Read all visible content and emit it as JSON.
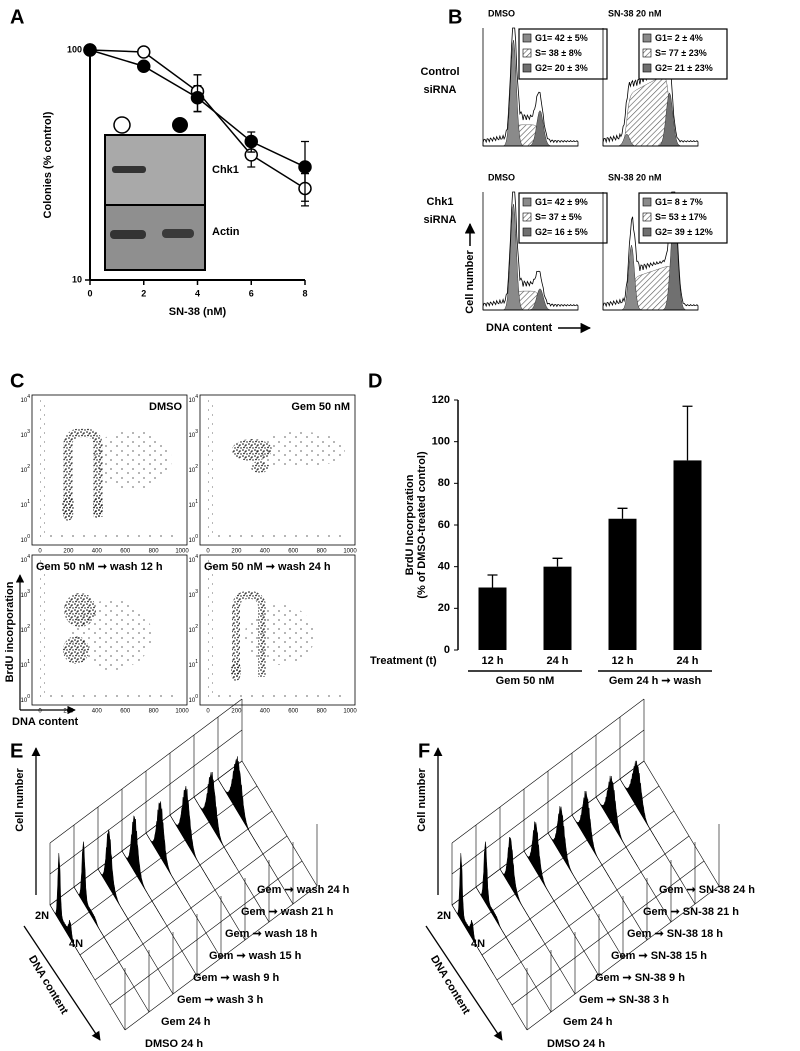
{
  "panel_labels": [
    "A",
    "B",
    "C",
    "D",
    "E",
    "F"
  ],
  "chart_data": [
    {
      "type": "line",
      "xlabel": "SN-38 (nM)",
      "ylabel": "Colonies (% control)",
      "x": [
        0,
        2,
        4,
        6,
        8
      ],
      "xlim": [
        0,
        8
      ],
      "xticks": [
        0,
        2,
        4,
        6,
        8
      ],
      "ylim": [
        10,
        100
      ],
      "yticks": [
        10,
        100
      ],
      "log_y": true,
      "series": [
        {
          "marker": "open",
          "color": "#000000",
          "values": [
            100,
            98,
            66,
            35,
            25
          ],
          "errors": [
            0,
            4,
            12,
            4,
            4
          ]
        },
        {
          "marker": "filled",
          "color": "#000000",
          "values": [
            100,
            85,
            62,
            40,
            31
          ],
          "errors": [
            0,
            3,
            8,
            4,
            9
          ]
        }
      ],
      "inset": {
        "labels": [
          "Chk1",
          "Actin"
        ]
      }
    },
    {
      "type": "bar",
      "categories": [
        "12 h",
        "24 h",
        "12 h",
        "24 h"
      ],
      "values": [
        30,
        40,
        63,
        91
      ],
      "errors": [
        6,
        4,
        5,
        26
      ],
      "color": "#000000",
      "ylim": [
        0,
        120
      ],
      "yticks": [
        0,
        20,
        40,
        60,
        80,
        100,
        120
      ],
      "ylabel": [
        "BrdU Incorporation",
        "(% of DMSO-treated control)"
      ],
      "xlabel": "Treatment (t)",
      "groups": [
        "Gem 50 nM",
        "Gem 24 h ➞ wash"
      ]
    }
  ],
  "flow_cytometry": {
    "columns": [
      "DMSO",
      "SN-38 20 nM"
    ],
    "rows": [
      [
        "Control",
        "siRNA"
      ],
      [
        "Chk1",
        "siRNA"
      ]
    ],
    "legends": [
      [
        "G1= 42 ± 5%",
        "S= 38 ± 8%",
        "G2= 20 ± 3%"
      ],
      [
        "G1= 2 ± 4%",
        "S= 77 ± 23%",
        "G2= 21 ± 23%"
      ],
      [
        "G1= 42 ± 9%",
        "S= 37 ± 5%",
        "G2= 16 ± 5%"
      ],
      [
        "G1= 8 ± 7%",
        "S= 53 ± 17%",
        "G2= 39 ± 12%"
      ]
    ],
    "ylabel": "Cell number",
    "xlabel": "DNA content"
  },
  "dot_plots": {
    "plots": [
      "DMSO",
      "Gem 50 nM",
      "Gem 50 nM ➞ wash 12 h",
      "Gem 50 nM ➞ wash 24 h"
    ],
    "xticks": [
      0,
      200,
      400,
      600,
      800,
      1000
    ],
    "ytick_base": "10",
    "ytick_exponents": [
      0,
      1,
      2,
      3,
      4
    ],
    "ylabel": "BrdU incorporation",
    "xlabel": "DNA content"
  },
  "histogram_stacks": [
    {
      "ylabel": "Cell number",
      "peaks": [
        "2N",
        "4N"
      ],
      "xlabel": "DNA content",
      "slices": [
        "DMSO 24 h",
        "Gem 24 h",
        "Gem ➞ wash 3 h",
        "Gem ➞ wash 9 h",
        "Gem ➞ wash 15 h",
        "Gem ➞ wash 18 h",
        "Gem ➞ wash 21 h",
        "Gem ➞ wash 24 h"
      ]
    },
    {
      "ylabel": "Cell number",
      "peaks": [
        "2N",
        "4N"
      ],
      "xlabel": "DNA content",
      "slices": [
        "DMSO 24 h",
        "Gem 24 h",
        "Gem ➞ SN-38 3 h",
        "Gem ➞ SN-38 9 h",
        "Gem ➞ SN-38 15 h",
        "Gem ➞ SN-38 18 h",
        "Gem ➞ SN-38 21 h",
        "Gem ➞ SN-38 24 h"
      ]
    }
  ]
}
